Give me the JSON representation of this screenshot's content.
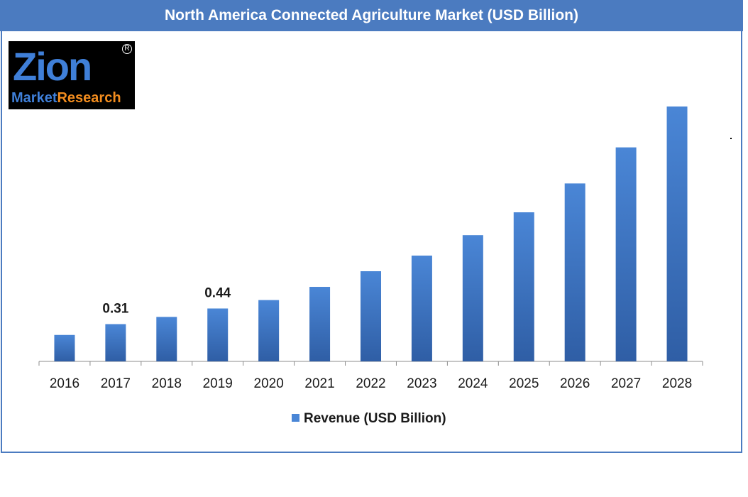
{
  "chart_data": {
    "type": "bar",
    "title": "North America Connected Agriculture Market (USD Billion)",
    "categories": [
      "2016",
      "2017",
      "2018",
      "2019",
      "2020",
      "2021",
      "2022",
      "2023",
      "2024",
      "2025",
      "2026",
      "2027",
      "2028"
    ],
    "series": [
      {
        "name": "Revenue (USD Billion)",
        "values": [
          0.22,
          0.31,
          0.37,
          0.44,
          0.51,
          0.62,
          0.75,
          0.88,
          1.05,
          1.24,
          1.48,
          1.78,
          2.12
        ]
      }
    ],
    "data_labels": [
      {
        "index": 1,
        "text": "0.31"
      },
      {
        "index": 3,
        "text": "0.44"
      }
    ],
    "ylim": [
      0,
      2.12
    ],
    "legend_position": "bottom-center",
    "grid": false,
    "colors": {
      "bar_top": "#4a86d6",
      "bar_bottom": "#2f5ea5",
      "header": "#4b7bc0"
    }
  },
  "logo": {
    "top_text": "Zion",
    "market_text": "Market",
    "research_text": "Research",
    "reg_mark": "R"
  }
}
